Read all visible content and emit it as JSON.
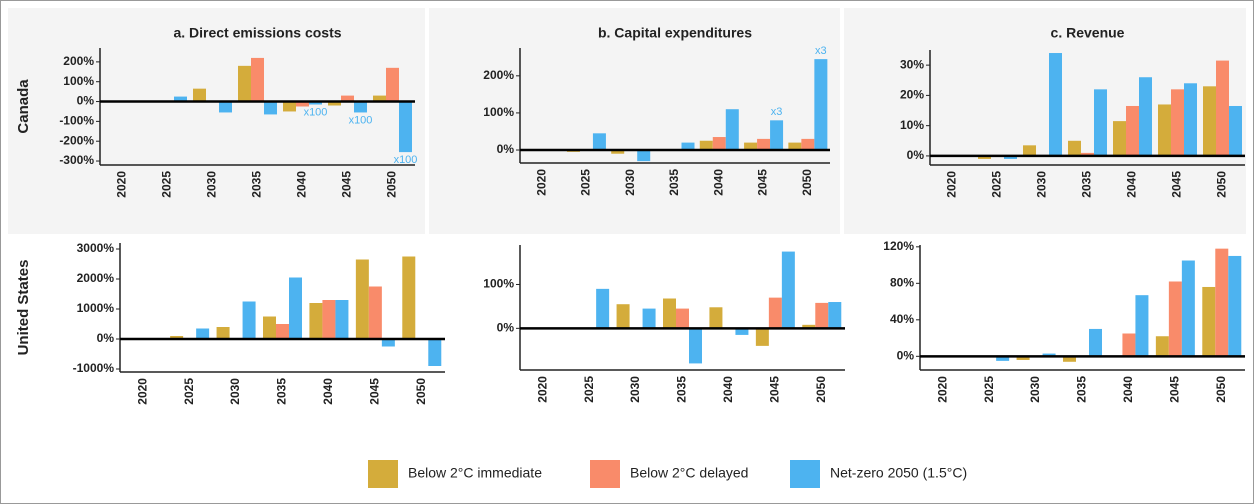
{
  "chart_data": [
    {
      "type": "bar",
      "title": "a. Direct emissions costs",
      "row_label": "Canada",
      "categories": [
        "2020",
        "2025",
        "2030",
        "2035",
        "2040",
        "2045",
        "2050"
      ],
      "series": [
        {
          "name": "Below 2°C immediate",
          "color": "#d4ac3b",
          "values": [
            0,
            0,
            65,
            180,
            -50,
            -20,
            30
          ]
        },
        {
          "name": "Below 2°C delayed",
          "color": "#f98b6a",
          "values": [
            0,
            0,
            0,
            220,
            -25,
            30,
            170
          ]
        },
        {
          "name": "Net-zero 2050 (1.5°C)",
          "color": "#4db3f0",
          "values": [
            0,
            25,
            -55,
            -65,
            -15,
            -55,
            -255
          ]
        }
      ],
      "ylim": [
        -320,
        270
      ],
      "yticks": [
        {
          "value": -300,
          "label": "-300%"
        },
        {
          "value": -200,
          "label": "-200%"
        },
        {
          "value": -100,
          "label": "-100%"
        },
        {
          "value": 0,
          "label": "0%"
        },
        {
          "value": 100,
          "label": "100%"
        },
        {
          "value": 200,
          "label": "200%"
        }
      ],
      "annotations": [
        {
          "text": "x100",
          "category": "2040"
        },
        {
          "text": "x100",
          "category": "2045"
        },
        {
          "text": "x100",
          "category": "2050"
        }
      ]
    },
    {
      "type": "bar",
      "title": "b. Capital expenditures",
      "categories": [
        "2020",
        "2025",
        "2030",
        "2035",
        "2040",
        "2045",
        "2050"
      ],
      "series": [
        {
          "values": [
            0,
            -5,
            -10,
            0,
            25,
            20,
            20
          ]
        },
        {
          "values": [
            0,
            0,
            0,
            0,
            35,
            30,
            30
          ]
        },
        {
          "values": [
            0,
            45,
            -30,
            20,
            110,
            80,
            245
          ]
        }
      ],
      "ylim": [
        -35,
        275
      ],
      "yticks": [
        {
          "value": 0,
          "label": "0%"
        },
        {
          "value": 100,
          "label": "100%"
        },
        {
          "value": 200,
          "label": "200%"
        }
      ],
      "annotations": [
        {
          "text": "x3",
          "category": "2045"
        },
        {
          "text": "x3",
          "category": "2050"
        }
      ]
    },
    {
      "type": "bar",
      "title": "c. Revenue",
      "categories": [
        "2020",
        "2025",
        "2030",
        "2035",
        "2040",
        "2045",
        "2050"
      ],
      "series": [
        {
          "values": [
            0,
            -1,
            3.5,
            5,
            11.5,
            17,
            23
          ]
        },
        {
          "values": [
            0,
            0,
            0,
            1,
            16.5,
            22,
            31.5
          ]
        },
        {
          "values": [
            0,
            -1,
            34,
            22,
            26,
            24,
            16.5
          ]
        }
      ],
      "ylim": [
        -3,
        35
      ],
      "yticks": [
        {
          "value": 0,
          "label": "0%"
        },
        {
          "value": 10,
          "label": "10%"
        },
        {
          "value": 20,
          "label": "20%"
        },
        {
          "value": 30,
          "label": "30%"
        }
      ]
    },
    {
      "type": "bar",
      "row_label": "United States",
      "categories": [
        "2020",
        "2025",
        "2030",
        "2035",
        "2040",
        "2045",
        "2050"
      ],
      "series": [
        {
          "values": [
            0,
            100,
            400,
            750,
            1200,
            2650,
            2750
          ]
        },
        {
          "values": [
            0,
            0,
            0,
            500,
            1300,
            1750,
            0
          ]
        },
        {
          "values": [
            0,
            350,
            1250,
            2050,
            1300,
            -250,
            -900
          ]
        }
      ],
      "ylim": [
        -1100,
        3200
      ],
      "yticks": [
        {
          "value": -1000,
          "label": "-1000%"
        },
        {
          "value": 0,
          "label": "0%"
        },
        {
          "value": 1000,
          "label": "1000%"
        },
        {
          "value": 2000,
          "label": "2000%"
        },
        {
          "value": 3000,
          "label": "3000%"
        }
      ]
    },
    {
      "type": "bar",
      "categories": [
        "2020",
        "2025",
        "2030",
        "2035",
        "2040",
        "2045",
        "2050"
      ],
      "series": [
        {
          "values": [
            0,
            0,
            55,
            68,
            48,
            -40,
            8
          ]
        },
        {
          "values": [
            0,
            0,
            0,
            45,
            0,
            70,
            58
          ]
        },
        {
          "values": [
            0,
            90,
            45,
            -80,
            -15,
            175,
            60
          ]
        }
      ],
      "ylim": [
        -95,
        190
      ],
      "yticks": [
        {
          "value": 0,
          "label": "0%"
        },
        {
          "value": 100,
          "label": "100%"
        }
      ]
    },
    {
      "type": "bar",
      "categories": [
        "2020",
        "2025",
        "2030",
        "2035",
        "2040",
        "2045",
        "2050"
      ],
      "series": [
        {
          "values": [
            0,
            0,
            -4,
            -6,
            0,
            22,
            76
          ]
        },
        {
          "values": [
            0,
            0,
            0,
            0,
            25,
            82,
            118
          ]
        },
        {
          "values": [
            0,
            -5,
            3,
            30,
            67,
            105,
            110
          ]
        }
      ],
      "ylim": [
        -15,
        122
      ],
      "yticks": [
        {
          "value": 0,
          "label": "0%"
        },
        {
          "value": 40,
          "label": "40%"
        },
        {
          "value": 80,
          "label": "80%"
        },
        {
          "value": 120,
          "label": "120%"
        }
      ]
    }
  ]
}
